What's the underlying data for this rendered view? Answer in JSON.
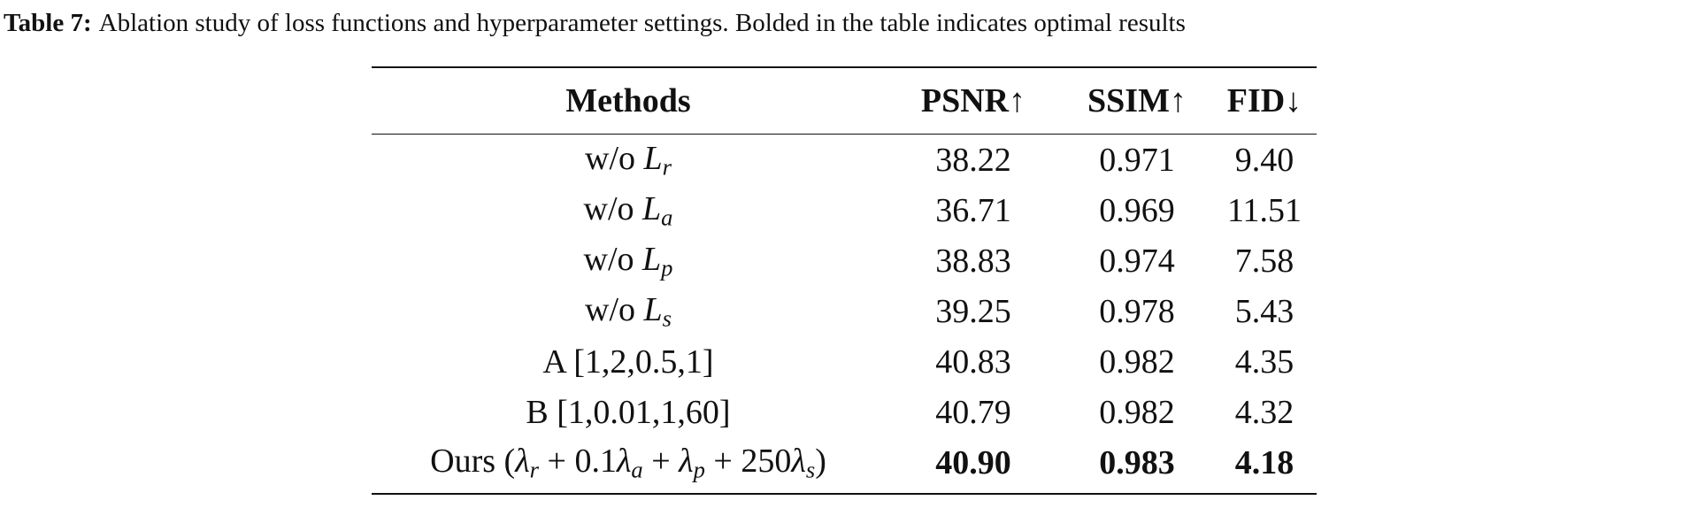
{
  "caption": {
    "label": "Table 7:",
    "text": "Ablation study of loss functions and hyperparameter settings. Bolded in the table indicates optimal results"
  },
  "table": {
    "header": [
      "Methods",
      "PSNR↑",
      "SSIM↑",
      "FID↓"
    ],
    "rows": [
      {
        "method": [
          {
            "t": "w/o "
          },
          {
            "v": "L",
            "s": "r"
          }
        ],
        "cells": [
          "38.22",
          "0.971",
          "9.40"
        ],
        "bold": false
      },
      {
        "method": [
          {
            "t": "w/o "
          },
          {
            "v": "L",
            "s": "a"
          }
        ],
        "cells": [
          "36.71",
          "0.969",
          "11.51"
        ],
        "bold": false
      },
      {
        "method": [
          {
            "t": "w/o "
          },
          {
            "v": "L",
            "s": "p"
          }
        ],
        "cells": [
          "38.83",
          "0.974",
          "7.58"
        ],
        "bold": false
      },
      {
        "method": [
          {
            "t": "w/o "
          },
          {
            "v": "L",
            "s": "s"
          }
        ],
        "cells": [
          "39.25",
          "0.978",
          "5.43"
        ],
        "bold": false
      },
      {
        "method": [
          {
            "t": "A [1,2,0.5,1]"
          }
        ],
        "cells": [
          "40.83",
          "0.982",
          "4.35"
        ],
        "bold": false
      },
      {
        "method": [
          {
            "t": "B [1,0.01,1,60]"
          }
        ],
        "cells": [
          "40.79",
          "0.982",
          "4.32"
        ],
        "bold": false
      },
      {
        "method": [
          {
            "t": "Ours ("
          },
          {
            "v": "λ",
            "s": "r"
          },
          {
            "t": " + 0.1"
          },
          {
            "v": "λ",
            "s": "a"
          },
          {
            "t": " + "
          },
          {
            "v": "λ",
            "s": "p"
          },
          {
            "t": " + 250"
          },
          {
            "v": "λ",
            "s": "s"
          },
          {
            "t": ")"
          }
        ],
        "cells": [
          "40.90",
          "0.983",
          "4.18"
        ],
        "bold": true
      }
    ]
  }
}
